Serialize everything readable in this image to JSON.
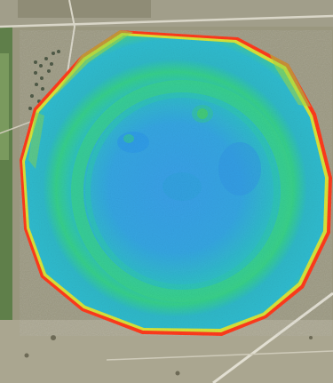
{
  "map": {
    "basemap": "satellite",
    "overlay": "field-heatmap",
    "colors": {
      "low": "#3aa0e8",
      "mid_low": "#2fbad0",
      "mid": "#2ed29a",
      "mid_high": "#5ad34b",
      "high": "#d8e43a",
      "edge": "#ff3b1f",
      "ground": "#9a977f",
      "field_green": "#6f8f5a",
      "road": "#d9d6c8"
    }
  }
}
